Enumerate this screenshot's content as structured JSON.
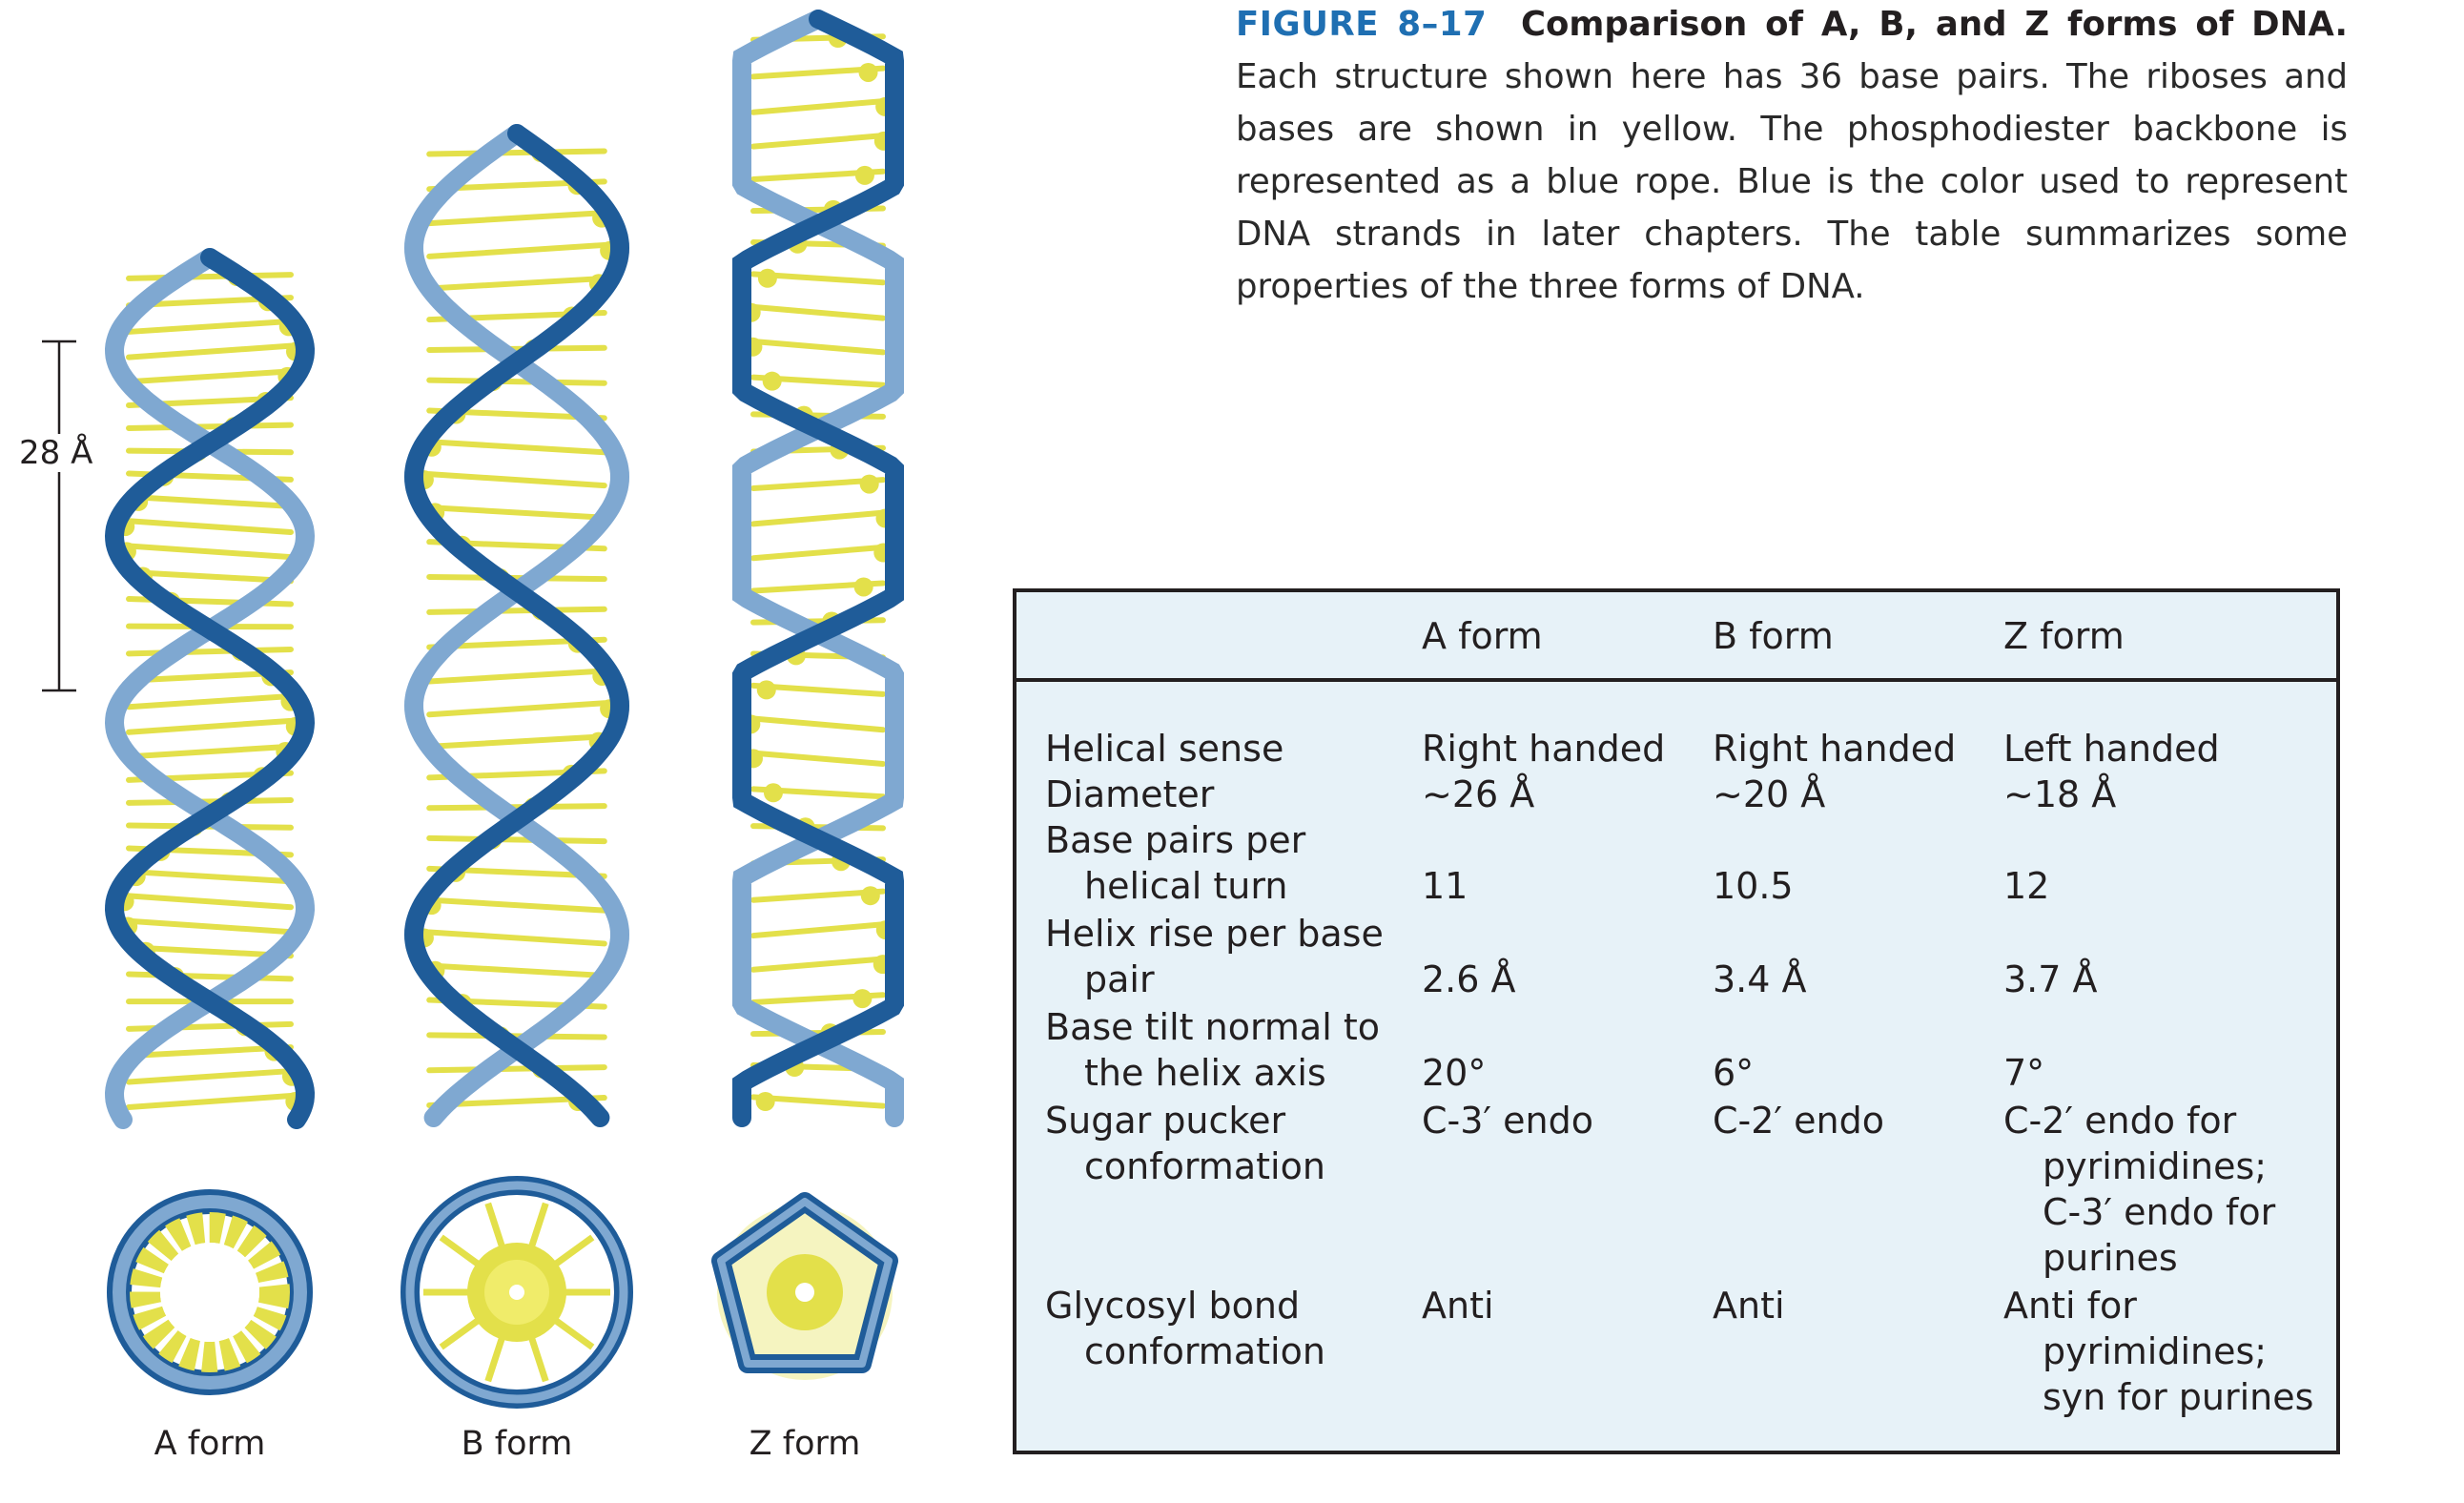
{
  "caption": {
    "figure_number": "FIGURE 8–17",
    "title": "Comparison of A, B, and Z forms of DNA.",
    "body": " Each structure shown here has 36 base pairs. The riboses and bases are shown in yellow. The phosphodiester backbone is represented as a blue rope. Blue is the color used to represent DNA strands in later chapters. The table summarizes some properties of the three forms of DNA."
  },
  "scale_bar": {
    "label": "28 Å"
  },
  "form_labels": {
    "a": "A form",
    "b": "B form",
    "z": "Z form"
  },
  "colors": {
    "backbone_light": "#7fa8d1",
    "backbone_dark": "#1f5c99",
    "bases": "#e3e04a",
    "table_bg": "#e7f2f8",
    "accent": "#1f6fb2"
  },
  "table": {
    "headers": [
      "A form",
      "B form",
      "Z form"
    ],
    "rows": [
      {
        "label": [
          "Helical sense"
        ],
        "a": "Right handed",
        "b": "Right handed",
        "z": [
          "Left handed"
        ]
      },
      {
        "label": [
          "Diameter"
        ],
        "a": "~26 Å",
        "b": "~20 Å",
        "z": [
          "~18 Å"
        ]
      },
      {
        "label": [
          "Base pairs per",
          "helical turn"
        ],
        "a": "11",
        "b": "10.5",
        "z": [
          "12"
        ]
      },
      {
        "label": [
          "Helix rise per base",
          "pair"
        ],
        "a": "2.6 Å",
        "b": "3.4 Å",
        "z": [
          "3.7 Å"
        ]
      },
      {
        "label": [
          "Base tilt normal to",
          "the helix axis"
        ],
        "a": "20°",
        "b": "6°",
        "z": [
          "7°"
        ]
      },
      {
        "label": [
          "Sugar pucker",
          "conformation"
        ],
        "a": "C-3′ endo",
        "b": "C-2′ endo",
        "z": [
          "C-2′ endo for",
          "pyrimidines;",
          "C-3′ endo for",
          "purines"
        ]
      },
      {
        "label": [
          "Glycosyl bond",
          "conformation"
        ],
        "a": "Anti",
        "b": "Anti",
        "z": [
          "Anti for",
          "pyrimidines;",
          "syn for purines"
        ]
      }
    ]
  }
}
